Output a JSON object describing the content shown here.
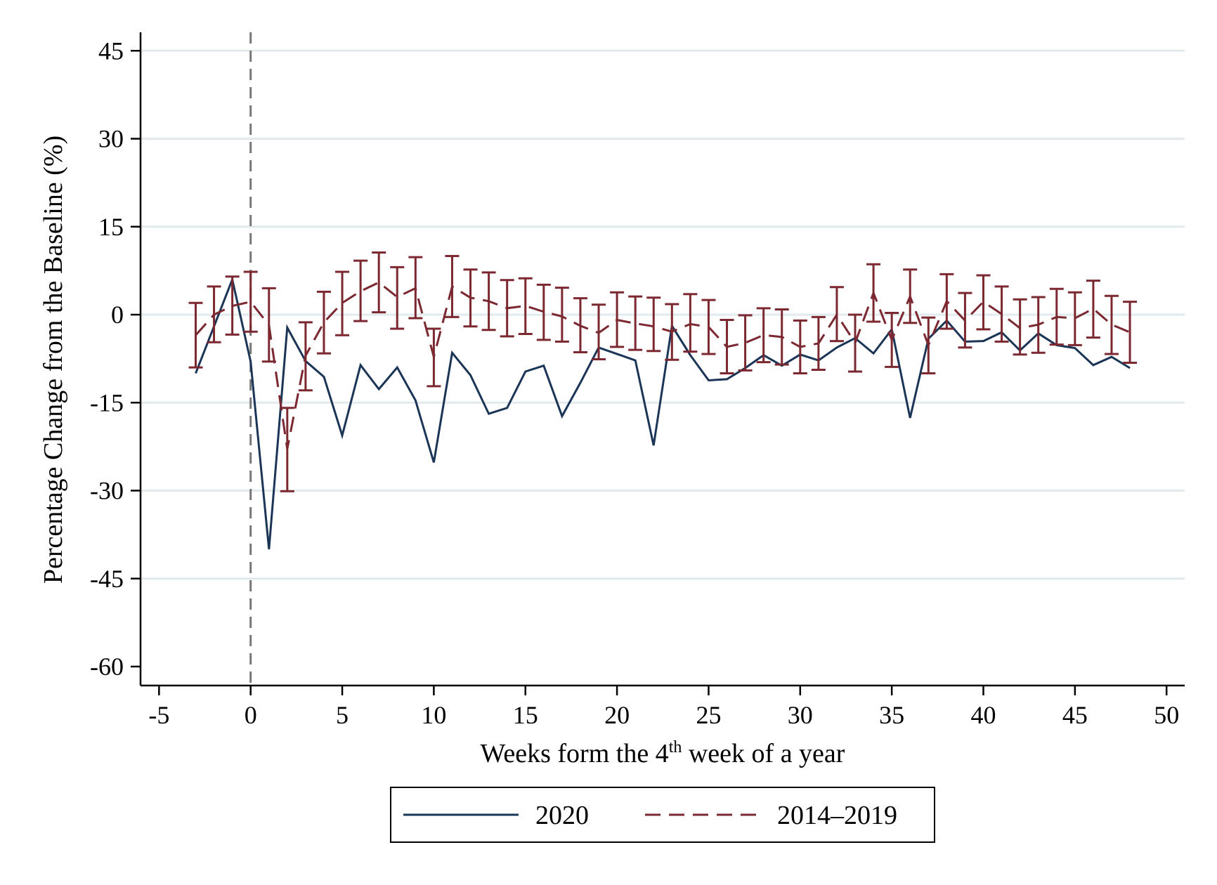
{
  "chart_data": {
    "type": "line",
    "title": "",
    "xlabel": {
      "prefix": "Weeks form the 4",
      "superscript": "th",
      "suffix": " week of a year"
    },
    "ylabel": "Percentage Change from the Baseline (%)",
    "xlim": [
      -5,
      50
    ],
    "ylim": [
      -62,
      48
    ],
    "xticks": [
      -5,
      0,
      5,
      10,
      15,
      20,
      25,
      30,
      35,
      40,
      45,
      50
    ],
    "yticks": [
      45,
      30,
      15,
      0,
      -15,
      -30,
      -45,
      -60
    ],
    "ytick_labels": [
      "45",
      "30",
      "15",
      "0",
      "-15",
      "-30",
      "-45",
      "-60"
    ],
    "grid": "horizontal",
    "vline_x": 0,
    "legend_position": "bottom",
    "series": [
      {
        "name": "2020",
        "style": "solid",
        "color": "#1b3557",
        "x": [
          -3,
          -1,
          0,
          1,
          2,
          3,
          4,
          5,
          6,
          7,
          8,
          9,
          10,
          11,
          12,
          13,
          14,
          15,
          16,
          17,
          18,
          19,
          20,
          21,
          22,
          23,
          24,
          25,
          26,
          27,
          28,
          29,
          30,
          31,
          32,
          33,
          34,
          35,
          36,
          37,
          38,
          39,
          40,
          41,
          42,
          43,
          44,
          45,
          46,
          47,
          48
        ],
        "y": [
          -10,
          6,
          -8,
          -40,
          -2.2,
          -7.9,
          -10.6,
          -20.6,
          -8.6,
          -12.7,
          -9,
          -14.6,
          -25.2,
          -6.5,
          -10.3,
          -16.9,
          -15.9,
          -9.7,
          -8.7,
          -17.3,
          -11.6,
          -5.6,
          -6.7,
          -7.8,
          -22.3,
          -1.9,
          -6.9,
          -11.2,
          -11,
          -9.1,
          -6.9,
          -8.7,
          -6.8,
          -7.8,
          -5.6,
          -4,
          -6.6,
          -2.5,
          -17.6,
          -4.1,
          -1,
          -4.6,
          -4.5,
          -3,
          -6.1,
          -3.2,
          -5.2,
          -5.7,
          -8.6,
          -7.2,
          -9.1
        ]
      },
      {
        "name": "2014–2019",
        "style": "dashed",
        "color": "#7b2831",
        "x": [
          -3,
          -2,
          -1,
          0,
          1,
          2,
          3,
          4,
          5,
          6,
          7,
          8,
          9,
          10,
          11,
          12,
          13,
          14,
          15,
          16,
          17,
          18,
          19,
          20,
          21,
          22,
          23,
          24,
          25,
          26,
          27,
          28,
          29,
          30,
          31,
          32,
          33,
          34,
          35,
          36,
          37,
          38,
          39,
          40,
          41,
          42,
          43,
          44,
          45,
          46,
          47,
          48
        ],
        "y": [
          -3.5,
          0,
          1.5,
          2.2,
          -1.8,
          -22.9,
          -7,
          -1.3,
          2,
          4,
          5.5,
          3,
          4.5,
          -7.2,
          4.8,
          2.9,
          2.3,
          1.1,
          1.5,
          0.5,
          -0.3,
          -1.9,
          -3.1,
          -0.9,
          -1.5,
          -2,
          -2.9,
          -1.6,
          -2.1,
          -5.5,
          -4.8,
          -3.5,
          -3.8,
          -5.5,
          -4.9,
          0,
          -4.8,
          3.7,
          -4.3,
          3.1,
          -5.2,
          2.3,
          -1,
          2.2,
          0.1,
          -2.3,
          -1.7,
          -0.4,
          -0.6,
          1,
          -1.7,
          -3
        ],
        "ci_low": [
          -9,
          -4.7,
          -3.4,
          -2.9,
          -8,
          -30.1,
          -12.9,
          -6.6,
          -3.5,
          -1.1,
          0.4,
          -2.4,
          -0.6,
          -12.2,
          -0.4,
          -2,
          -2.6,
          -3.7,
          -3.3,
          -4.3,
          -4.6,
          -6.4,
          -7.6,
          -5.5,
          -6,
          -6.2,
          -7.7,
          -6.3,
          -6.7,
          -10,
          -9.5,
          -8.1,
          -8.5,
          -10,
          -9.4,
          -4.5,
          -9.7,
          -1.2,
          -8.9,
          -1.4,
          -10,
          -2.4,
          -5.6,
          -2.5,
          -4.6,
          -6.8,
          -6.5,
          -5.1,
          -5.2,
          -3.9,
          -6.7,
          -8.2
        ],
        "ci_high": [
          2,
          4.8,
          6.5,
          7.3,
          4.5,
          -15.9,
          -1.3,
          3.9,
          7.3,
          9.2,
          10.6,
          8.1,
          9.8,
          -2.4,
          10,
          7.7,
          7.2,
          5.9,
          6.2,
          5.1,
          4.6,
          2.8,
          1.7,
          3.8,
          3.1,
          2.9,
          1.8,
          3.5,
          2.5,
          -0.9,
          -0.1,
          1.1,
          0.9,
          -1,
          -0.4,
          4.7,
          0,
          8.6,
          0.3,
          7.7,
          -0.5,
          6.9,
          3.7,
          6.7,
          4.8,
          2.6,
          3,
          4.4,
          3.8,
          5.8,
          3.2,
          2.2
        ]
      }
    ]
  }
}
